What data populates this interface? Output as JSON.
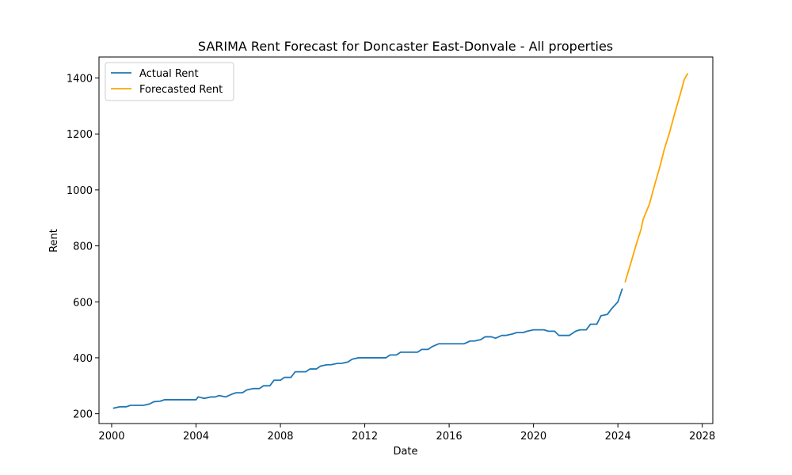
{
  "chart_data": {
    "type": "line",
    "title": "SARIMA Rent Forecast for Doncaster East-Donvale - All properties",
    "xlabel": "Date",
    "ylabel": "Rent",
    "xlim": [
      1999.4,
      2028.5
    ],
    "ylim": [
      165,
      1475
    ],
    "x_ticks": [
      2000,
      2004,
      2008,
      2012,
      2016,
      2020,
      2024,
      2028
    ],
    "y_ticks": [
      200,
      400,
      600,
      800,
      1000,
      1200,
      1400
    ],
    "grid": false,
    "legend_position": "upper left",
    "series": [
      {
        "name": "Actual Rent",
        "color": "#1f77b4",
        "points": [
          [
            2000.1,
            220
          ],
          [
            2000.4,
            225
          ],
          [
            2000.7,
            225
          ],
          [
            2000.9,
            230
          ],
          [
            2001.2,
            230
          ],
          [
            2001.5,
            230
          ],
          [
            2001.8,
            235
          ],
          [
            2002.0,
            243
          ],
          [
            2002.3,
            245
          ],
          [
            2002.5,
            250
          ],
          [
            2002.8,
            250
          ],
          [
            2003.1,
            250
          ],
          [
            2003.4,
            250
          ],
          [
            2003.7,
            250
          ],
          [
            2004.0,
            250
          ],
          [
            2004.1,
            260
          ],
          [
            2004.4,
            255
          ],
          [
            2004.7,
            260
          ],
          [
            2004.9,
            260
          ],
          [
            2005.1,
            265
          ],
          [
            2005.4,
            260
          ],
          [
            2005.7,
            270
          ],
          [
            2005.9,
            275
          ],
          [
            2006.2,
            275
          ],
          [
            2006.4,
            285
          ],
          [
            2006.7,
            290
          ],
          [
            2007.0,
            290
          ],
          [
            2007.2,
            300
          ],
          [
            2007.5,
            300
          ],
          [
            2007.7,
            320
          ],
          [
            2008.0,
            320
          ],
          [
            2008.2,
            330
          ],
          [
            2008.5,
            330
          ],
          [
            2008.7,
            350
          ],
          [
            2009.0,
            350
          ],
          [
            2009.2,
            350
          ],
          [
            2009.4,
            360
          ],
          [
            2009.7,
            360
          ],
          [
            2009.9,
            370
          ],
          [
            2010.2,
            375
          ],
          [
            2010.4,
            375
          ],
          [
            2010.7,
            380
          ],
          [
            2010.9,
            380
          ],
          [
            2011.2,
            385
          ],
          [
            2011.4,
            395
          ],
          [
            2011.7,
            400
          ],
          [
            2012.0,
            400
          ],
          [
            2012.2,
            400
          ],
          [
            2012.5,
            400
          ],
          [
            2012.7,
            400
          ],
          [
            2013.0,
            400
          ],
          [
            2013.2,
            410
          ],
          [
            2013.5,
            410
          ],
          [
            2013.7,
            420
          ],
          [
            2014.0,
            420
          ],
          [
            2014.2,
            420
          ],
          [
            2014.5,
            420
          ],
          [
            2014.7,
            430
          ],
          [
            2015.0,
            430
          ],
          [
            2015.2,
            440
          ],
          [
            2015.5,
            450
          ],
          [
            2015.7,
            450
          ],
          [
            2016.0,
            450
          ],
          [
            2016.2,
            450
          ],
          [
            2016.5,
            450
          ],
          [
            2016.7,
            450
          ],
          [
            2017.0,
            460
          ],
          [
            2017.2,
            460
          ],
          [
            2017.5,
            465
          ],
          [
            2017.7,
            475
          ],
          [
            2018.0,
            475
          ],
          [
            2018.2,
            470
          ],
          [
            2018.5,
            480
          ],
          [
            2018.7,
            480
          ],
          [
            2019.0,
            485
          ],
          [
            2019.2,
            490
          ],
          [
            2019.5,
            490
          ],
          [
            2019.7,
            495
          ],
          [
            2020.0,
            500
          ],
          [
            2020.2,
            500
          ],
          [
            2020.5,
            500
          ],
          [
            2020.7,
            495
          ],
          [
            2021.0,
            495
          ],
          [
            2021.2,
            480
          ],
          [
            2021.5,
            480
          ],
          [
            2021.7,
            480
          ],
          [
            2022.0,
            495
          ],
          [
            2022.2,
            500
          ],
          [
            2022.5,
            500
          ],
          [
            2022.7,
            520
          ],
          [
            2023.0,
            520
          ],
          [
            2023.2,
            550
          ],
          [
            2023.5,
            555
          ],
          [
            2023.7,
            575
          ],
          [
            2024.0,
            600
          ],
          [
            2024.2,
            645
          ]
        ]
      },
      {
        "name": "Forecasted Rent",
        "color": "#ffa500",
        "points": [
          [
            2024.35,
            672
          ],
          [
            2024.6,
            735
          ],
          [
            2024.85,
            800
          ],
          [
            2025.1,
            860
          ],
          [
            2025.2,
            895
          ],
          [
            2025.5,
            950
          ],
          [
            2025.75,
            1020
          ],
          [
            2026.0,
            1085
          ],
          [
            2026.2,
            1145
          ],
          [
            2026.45,
            1205
          ],
          [
            2026.7,
            1275
          ],
          [
            2026.95,
            1340
          ],
          [
            2027.15,
            1395
          ],
          [
            2027.3,
            1415
          ]
        ]
      }
    ]
  }
}
